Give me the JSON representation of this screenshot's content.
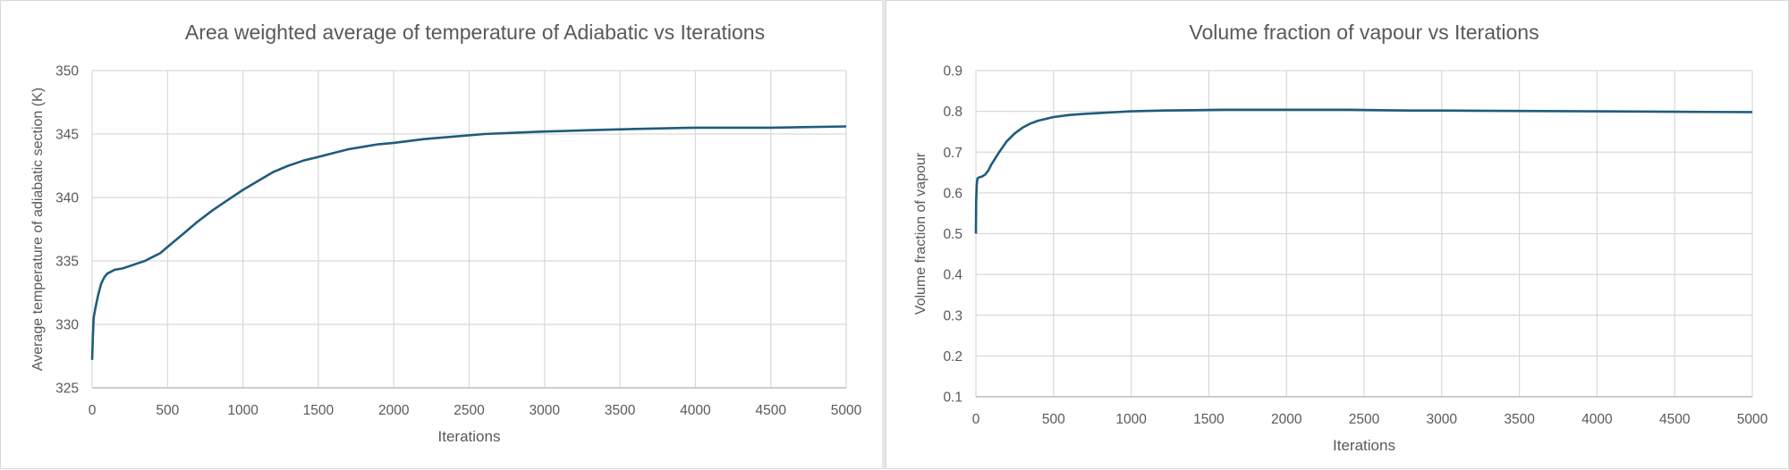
{
  "chart_data": [
    {
      "type": "line",
      "title": "Area weighted average of temperature of Adiabatic vs Iterations",
      "xlabel": "Iterations",
      "ylabel": "Average temperature of adiabatic section (K)",
      "xlim": [
        0,
        5000
      ],
      "ylim": [
        325,
        350
      ],
      "xticks": [
        "0",
        "500",
        "1000",
        "1500",
        "2000",
        "2500",
        "3000",
        "3500",
        "4000",
        "4500",
        "5000"
      ],
      "yticks": [
        "325",
        "330",
        "335",
        "340",
        "345",
        "350"
      ],
      "grid": true,
      "line_color": "#1f5c7a",
      "series": [
        {
          "name": "",
          "x": [
            0,
            5,
            10,
            20,
            40,
            60,
            80,
            100,
            150,
            200,
            250,
            300,
            350,
            400,
            450,
            500,
            600,
            700,
            800,
            900,
            1000,
            1100,
            1200,
            1300,
            1400,
            1500,
            1600,
            1700,
            1800,
            1900,
            2000,
            2200,
            2400,
            2600,
            2800,
            3000,
            3300,
            3600,
            4000,
            4500,
            5000
          ],
          "y": [
            327.2,
            329.0,
            330.5,
            331.2,
            332.3,
            333.2,
            333.7,
            334.0,
            334.3,
            334.4,
            334.6,
            334.8,
            335.0,
            335.3,
            335.6,
            336.1,
            337.1,
            338.1,
            339.0,
            339.8,
            340.6,
            341.3,
            342.0,
            342.5,
            342.9,
            343.2,
            343.5,
            343.8,
            344.0,
            344.2,
            344.3,
            344.6,
            344.8,
            345.0,
            345.1,
            345.2,
            345.3,
            345.4,
            345.5,
            345.5,
            345.6
          ]
        }
      ]
    },
    {
      "type": "line",
      "title": "Volume fraction of vapour vs Iterations",
      "xlabel": "Iterations",
      "ylabel": "Volume fraction of vapour",
      "xlim": [
        0,
        5000
      ],
      "ylim": [
        0.1,
        0.9
      ],
      "xticks": [
        "0",
        "500",
        "1000",
        "1500",
        "2000",
        "2500",
        "3000",
        "3500",
        "4000",
        "4500",
        "5000"
      ],
      "yticks": [
        "0.1",
        "0.2",
        "0.3",
        "0.4",
        "0.5",
        "0.6",
        "0.7",
        "0.8",
        "0.9"
      ],
      "grid": true,
      "line_color": "#1f5c7a",
      "series": [
        {
          "name": "",
          "x": [
            0,
            2,
            5,
            10,
            20,
            40,
            60,
            80,
            100,
            150,
            200,
            250,
            300,
            350,
            400,
            500,
            600,
            700,
            800,
            900,
            1000,
            1200,
            1400,
            1600,
            1800,
            2000,
            2200,
            2400,
            2600,
            2800,
            3000,
            3500,
            4000,
            4500,
            5000
          ],
          "y": [
            0.5,
            0.58,
            0.62,
            0.635,
            0.638,
            0.64,
            0.645,
            0.655,
            0.67,
            0.7,
            0.727,
            0.746,
            0.76,
            0.77,
            0.777,
            0.786,
            0.791,
            0.794,
            0.796,
            0.798,
            0.8,
            0.802,
            0.803,
            0.804,
            0.804,
            0.804,
            0.804,
            0.804,
            0.803,
            0.802,
            0.802,
            0.801,
            0.8,
            0.799,
            0.798
          ]
        }
      ]
    }
  ]
}
